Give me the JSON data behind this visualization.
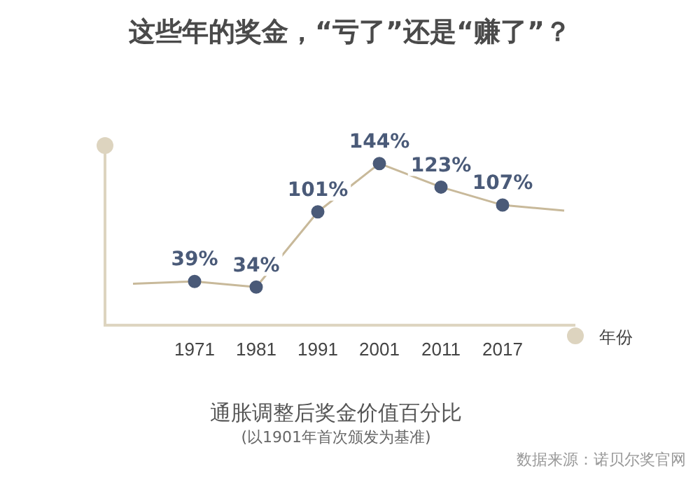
{
  "chart_data": {
    "type": "line",
    "title": "这些年的奖金，“亏了”还是“赚了”？",
    "xlabel": "年份",
    "categories": [
      null,
      "1971",
      "1981",
      "1991",
      "2001",
      "2011",
      "2017",
      null
    ],
    "series": [
      {
        "color": "#c8b99a",
        "values": [
          37,
          39,
          34,
          101,
          144,
          123,
          107,
          102
        ],
        "value_labels": [
          null,
          "39%",
          "34%",
          "101%",
          "144%",
          "123%",
          "107%",
          null
        ]
      }
    ],
    "marker": "circle",
    "grid": false,
    "legend": false,
    "annotations": [
      "通胀调整后奖金价值百分比",
      "(以1901年首次颁发为基准)",
      "数据来源：诺贝尔奖官网"
    ]
  }
}
